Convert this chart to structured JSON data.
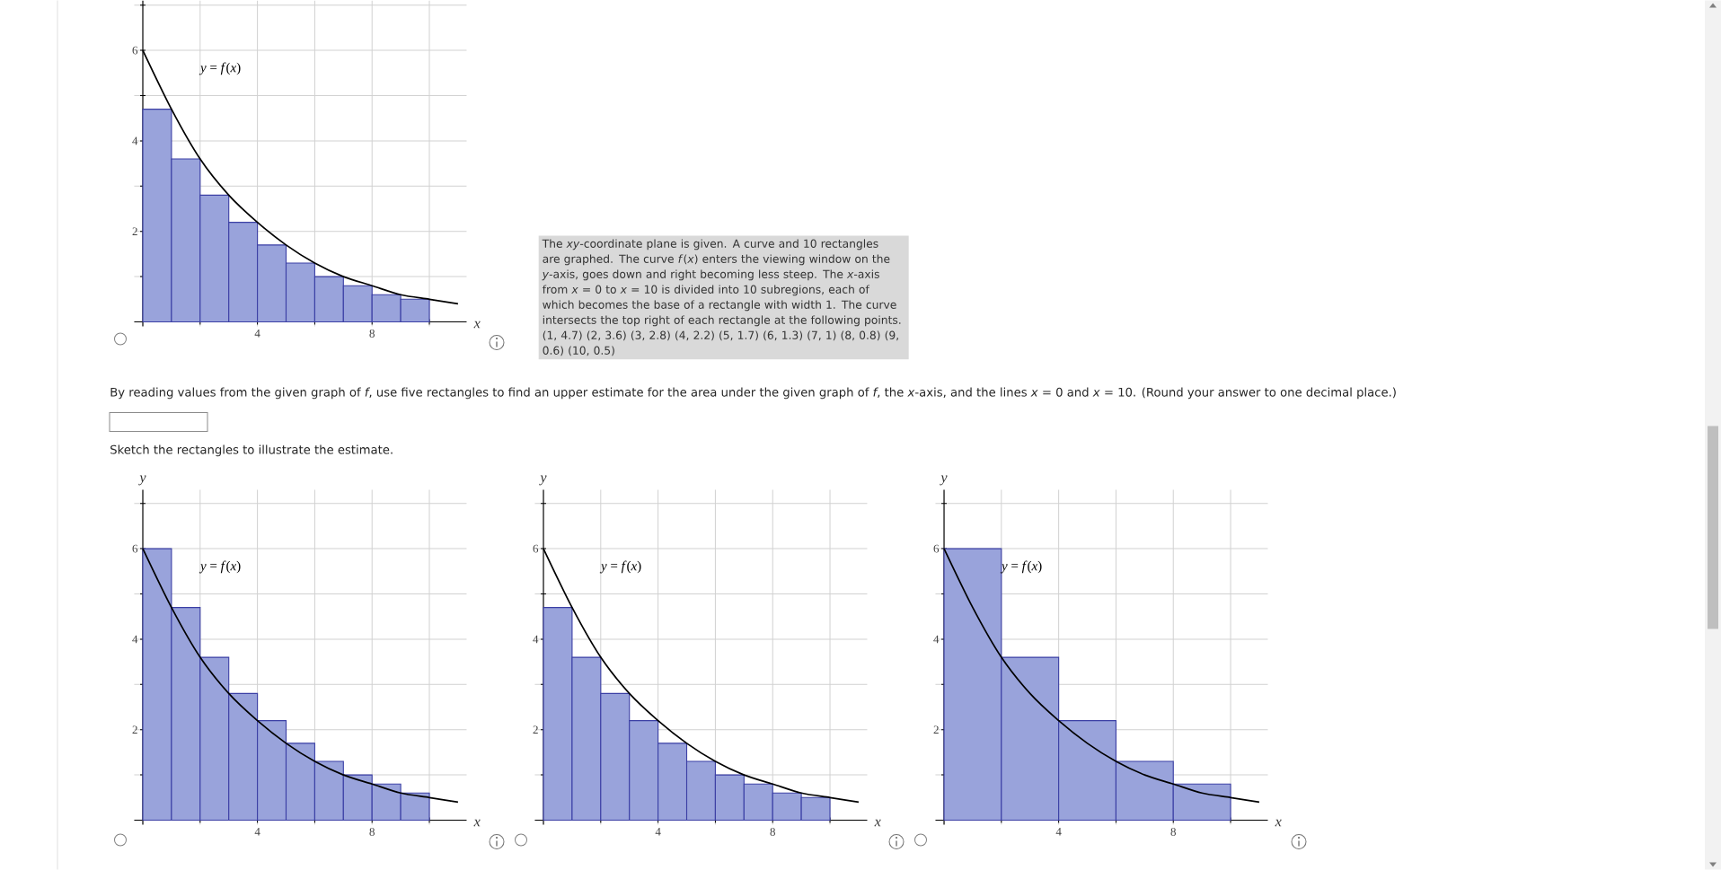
{
  "chart_data": [
    {
      "type": "bar",
      "xlabel": "x",
      "xlim": [
        -0.3,
        11.3
      ],
      "ylim": [
        -0.1,
        7.1
      ],
      "grid": true,
      "xticks": [
        {
          "value": 2,
          "label": null
        },
        4,
        {
          "value": 6,
          "label": null
        },
        8,
        {
          "value": 10,
          "label": null
        }
      ],
      "yticks": [
        {
          "value": 1,
          "label": null
        },
        2,
        {
          "value": 3,
          "label": null
        },
        4,
        {
          "value": 5,
          "label": null
        },
        6,
        {
          "value": 7,
          "label": null
        }
      ],
      "series": [
        {
          "type": "bar",
          "color": "#99a3db",
          "x": [
            0.5,
            1.5,
            2.5,
            3.5,
            4.5,
            5.5,
            6.5,
            7.5,
            8.5,
            9.5
          ],
          "values": [
            4.7,
            3.6,
            2.8,
            2.2,
            1.7,
            1.3,
            1,
            0.8,
            0.6,
            0.5
          ]
        },
        {
          "type": "line",
          "color": "#000000",
          "x": [
            0,
            1,
            2,
            3,
            4,
            5,
            6,
            7,
            8,
            9,
            10,
            11
          ],
          "values": [
            6,
            4.7,
            3.6,
            2.8,
            2.2,
            1.7,
            1.3,
            1,
            0.8,
            0.6,
            0.5,
            0.4
          ]
        }
      ],
      "annotations": [
        "*y* = *f*(*x*)",
        "The *xy*-coordinate plane is given. A curve and 10 rectangles are graphed. The curve *f*(*x*) enters the viewing window on the *y*-axis, goes down and right becoming less steep. The *x*-axis from *x* = 0 to *x* = 10 is divided into 10 subregions, each of which becomes the base of a rectangle with width 1. The curve intersects the top right of each rectangle at the following points. (1, 4.7) (2, 3.6) (3, 2.8) (4, 2.2) (5, 1.7) (6, 1.3) (7, 1) (8, 0.8) (9, 0.6) (10, 0.5)"
      ]
    },
    {
      "type": "other",
      "annotations": [
        "By reading values from the given graph of *f*, use five rectangles to find an upper estimate for the area under the given graph of *f*, the *x*-axis, and the lines *x* = 0 and *x* = 10. (Round your answer to one decimal place.)",
        "Sketch the rectangles to illustrate the estimate."
      ]
    },
    {
      "type": "bar",
      "xlabel": "x",
      "ylabel": "y",
      "xlim": [
        -0.3,
        11.3
      ],
      "ylim": [
        -0.1,
        7.3
      ],
      "grid": true,
      "xticks": [
        {
          "value": 2,
          "label": null
        },
        4,
        {
          "value": 6,
          "label": null
        },
        8,
        {
          "value": 10,
          "label": null
        }
      ],
      "yticks": [
        {
          "value": 1,
          "label": null
        },
        2,
        {
          "value": 3,
          "label": null
        },
        4,
        {
          "value": 5,
          "label": null
        },
        6,
        {
          "value": 7,
          "label": null
        }
      ],
      "series": [
        {
          "type": "bar",
          "color": "#99a3db",
          "x": [
            0.5,
            1.5,
            2.5,
            3.5,
            4.5,
            5.5,
            6.5,
            7.5,
            8.5,
            9.5
          ],
          "values": [
            6,
            4.7,
            3.6,
            2.8,
            2.2,
            1.7,
            1.3,
            1,
            0.8,
            0.6
          ]
        },
        {
          "type": "line",
          "color": "#000000",
          "x": [
            0,
            1,
            2,
            3,
            4,
            5,
            6,
            7,
            8,
            9,
            10,
            11
          ],
          "values": [
            6,
            4.7,
            3.6,
            2.8,
            2.2,
            1.7,
            1.3,
            1,
            0.8,
            0.6,
            0.5,
            0.4
          ]
        }
      ],
      "annotations": [
        "*y* = *f*(*x*)"
      ]
    },
    {
      "type": "bar",
      "xlabel": "x",
      "ylabel": "y",
      "xlim": [
        -0.3,
        11.3
      ],
      "ylim": [
        -0.1,
        7.3
      ],
      "grid": true,
      "xticks": [
        {
          "value": 2,
          "label": null
        },
        4,
        {
          "value": 6,
          "label": null
        },
        8,
        {
          "value": 10,
          "label": null
        }
      ],
      "yticks": [
        {
          "value": 1,
          "label": null
        },
        2,
        {
          "value": 3,
          "label": null
        },
        4,
        {
          "value": 5,
          "label": null
        },
        6,
        {
          "value": 7,
          "label": null
        }
      ],
      "series": [
        {
          "type": "bar",
          "color": "#99a3db",
          "x": [
            0.5,
            1.5,
            2.5,
            3.5,
            4.5,
            5.5,
            6.5,
            7.5,
            8.5,
            9.5
          ],
          "values": [
            4.7,
            3.6,
            2.8,
            2.2,
            1.7,
            1.3,
            1,
            0.8,
            0.6,
            0.5
          ]
        },
        {
          "type": "line",
          "color": "#000000",
          "x": [
            0,
            1,
            2,
            3,
            4,
            5,
            6,
            7,
            8,
            9,
            10,
            11
          ],
          "values": [
            6,
            4.7,
            3.6,
            2.8,
            2.2,
            1.7,
            1.3,
            1,
            0.8,
            0.6,
            0.5,
            0.4
          ]
        }
      ],
      "annotations": [
        "*y* = *f*(*x*)"
      ]
    },
    {
      "type": "bar",
      "xlabel": "x",
      "ylabel": "y",
      "xlim": [
        -0.3,
        11.3
      ],
      "ylim": [
        -0.1,
        7.3
      ],
      "grid": true,
      "xticks": [
        {
          "value": 2,
          "label": null
        },
        4,
        {
          "value": 6,
          "label": null
        },
        8,
        {
          "value": 10,
          "label": null
        }
      ],
      "yticks": [
        {
          "value": 1,
          "label": null
        },
        2,
        {
          "value": 3,
          "label": null
        },
        4,
        {
          "value": 5,
          "label": null
        },
        6,
        {
          "value": 7,
          "label": null
        }
      ],
      "series": [
        {
          "type": "bar",
          "color": "#99a3db",
          "x": [
            1,
            3,
            5,
            7,
            9
          ],
          "values": [
            6,
            3.6,
            2.2,
            1.3,
            0.8
          ]
        },
        {
          "type": "line",
          "color": "#000000",
          "x": [
            0,
            1,
            2,
            3,
            4,
            5,
            6,
            7,
            8,
            9,
            10,
            11
          ],
          "values": [
            6,
            4.7,
            3.6,
            2.8,
            2.2,
            1.7,
            1.3,
            1,
            0.8,
            0.6,
            0.5,
            0.4
          ]
        }
      ],
      "annotations": [
        "*y* = *f*(*x*)"
      ]
    }
  ]
}
